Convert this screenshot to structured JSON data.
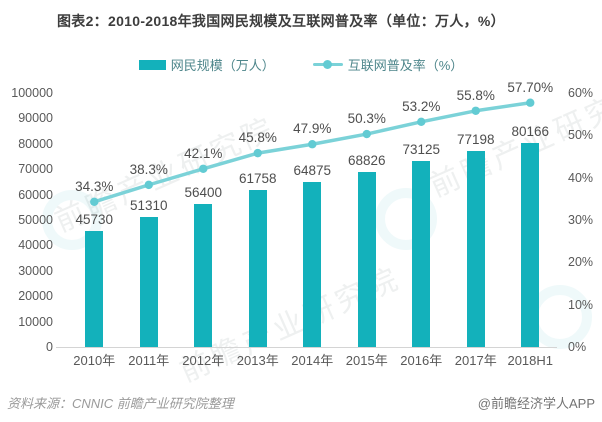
{
  "chart_data": {
    "type": "bar+line",
    "title": "图表2：2010-2018年我国网民规模及互联网普及率（单位：万人，%）",
    "categories": [
      "2010年",
      "2011年",
      "2012年",
      "2013年",
      "2014年",
      "2015年",
      "2016年",
      "2017年",
      "2018H1"
    ],
    "series": [
      {
        "name": "网民规模（万人）",
        "type": "bar",
        "y_axis": "left",
        "values": [
          45730,
          51310,
          56400,
          61758,
          64875,
          68826,
          73125,
          77198,
          80166
        ],
        "data_labels": [
          "45730",
          "51310",
          "56400",
          "61758",
          "64875",
          "68826",
          "73125",
          "77198",
          "80166"
        ]
      },
      {
        "name": "互联网普及率（%）",
        "type": "line",
        "y_axis": "right",
        "values": [
          34.3,
          38.3,
          42.1,
          45.8,
          47.9,
          50.3,
          53.2,
          55.8,
          57.7
        ],
        "data_labels": [
          "34.3%",
          "38.3%",
          "42.1%",
          "45.8%",
          "47.9%",
          "50.3%",
          "53.2%",
          "55.8%",
          "57.70%"
        ]
      }
    ],
    "left_axis": {
      "min": 0,
      "max": 100000,
      "ticks": [
        "0",
        "10000",
        "20000",
        "30000",
        "40000",
        "50000",
        "60000",
        "70000",
        "80000",
        "90000",
        "100000"
      ]
    },
    "right_axis": {
      "min": 0,
      "max": 60,
      "ticks": [
        "0%",
        "10%",
        "20%",
        "30%",
        "40%",
        "50%",
        "60%"
      ]
    },
    "grid": false,
    "legend_position": "top-center"
  },
  "colors": {
    "bar": "#13b1bb",
    "line": "#7bd2d8",
    "marker": "#62cbd3",
    "title_text": "#3d3d3d",
    "axis_text": "#595959",
    "label_text": "#4e4e4e",
    "legend_text": "#4e868b",
    "axis_line": "#d4d4d4"
  },
  "watermark": {
    "text": "前瞻产业研究院"
  },
  "footer": {
    "source": "资料来源：CNNIC 前瞻产业研究院整理",
    "credit": "@前瞻经济学人APP"
  }
}
